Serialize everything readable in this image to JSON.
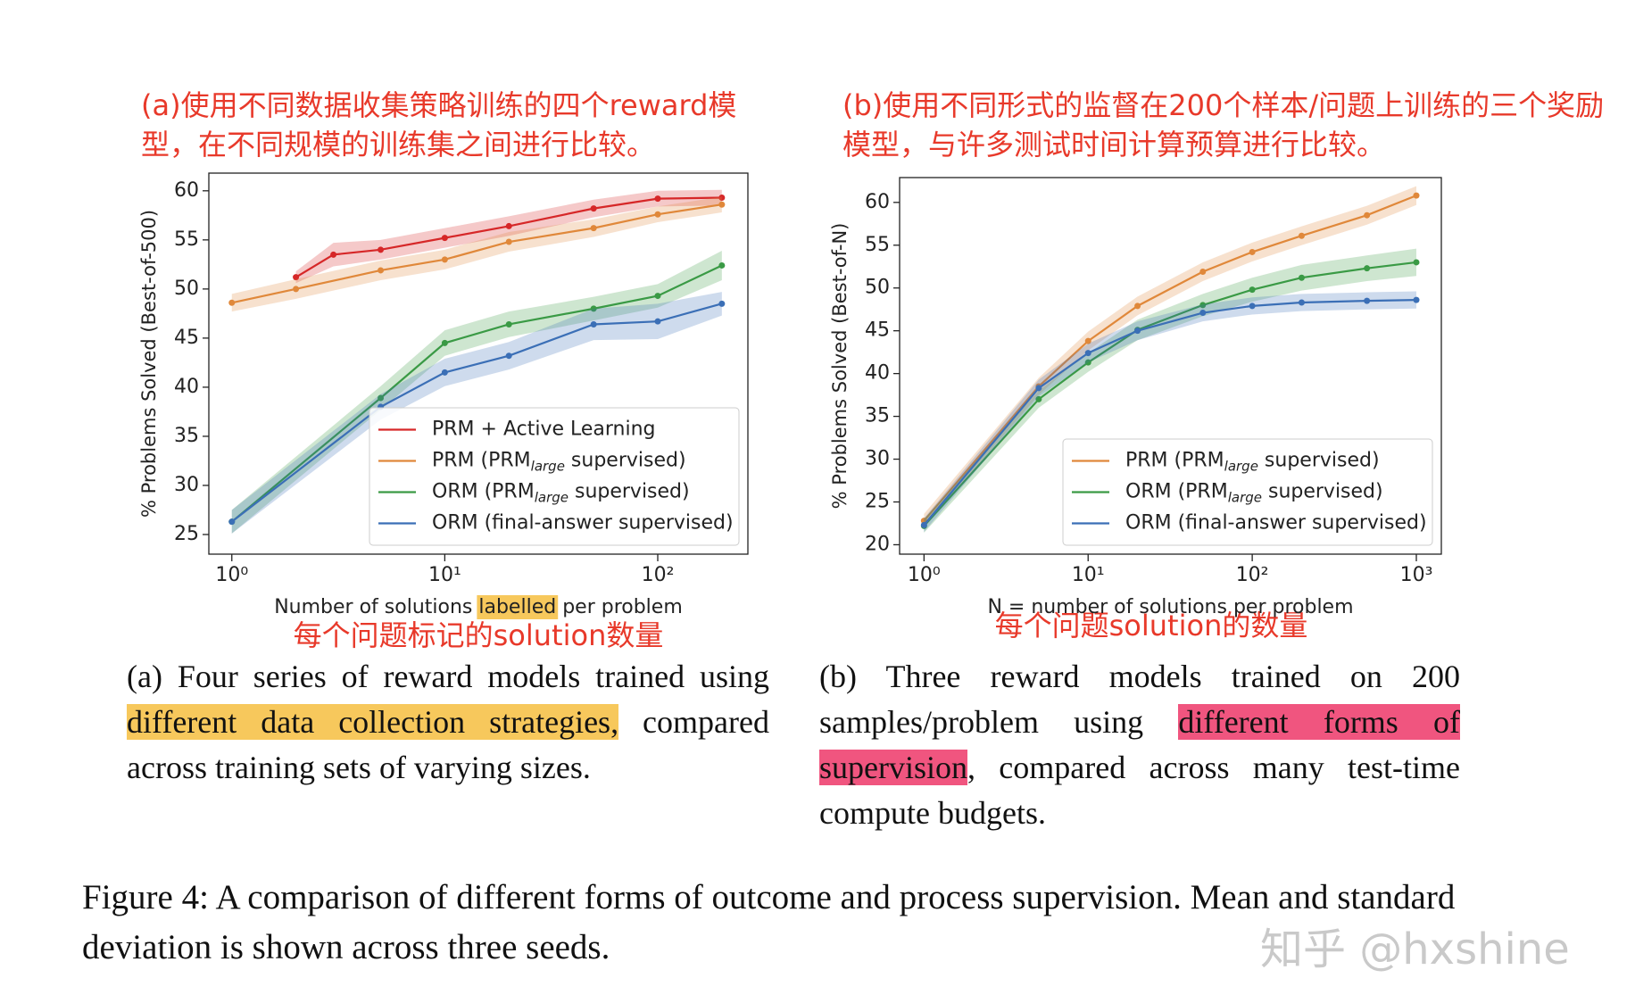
{
  "chart_data": [
    {
      "type": "line",
      "xscale": "log",
      "xlim": [
        0.78,
        265
      ],
      "ylim": [
        23,
        61.8
      ],
      "xticks": [
        {
          "value": 1,
          "label": "10⁰"
        },
        {
          "value": 10,
          "label": "10¹"
        },
        {
          "value": 100,
          "label": "10²"
        }
      ],
      "yticks": [
        25,
        30,
        35,
        40,
        45,
        50,
        55,
        60
      ],
      "xlabel": [
        "Number of solutions ",
        "labelled",
        " per problem"
      ],
      "xlabel_highlight": {
        "index": 1,
        "color": "#f7c85c"
      },
      "ylabel": "% Problems Solved (Best-of-500)",
      "legend": "lower right",
      "series": [
        {
          "name": "PRM + Active Learning",
          "color": "#d62728",
          "x": [
            2,
            3,
            5,
            10,
            20,
            50,
            100,
            200
          ],
          "values": [
            51.2,
            53.5,
            54,
            55.2,
            56.4,
            58.2,
            59.2,
            59.3
          ],
          "errors": [
            0.6,
            1.2,
            1.0,
            1.0,
            1.0,
            0.9,
            0.8,
            0.8
          ]
        },
        {
          "name": [
            "PRM (PRM",
            "large",
            " supervised)"
          ],
          "color": "#e0883a",
          "x": [
            1,
            2,
            5,
            10,
            20,
            50,
            100,
            200
          ],
          "values": [
            48.6,
            50,
            51.9,
            53,
            54.8,
            56.2,
            57.6,
            58.6
          ],
          "errors": [
            0.9,
            1.0,
            1.0,
            1.0,
            1.0,
            0.9,
            0.8,
            0.8
          ]
        },
        {
          "name": [
            "ORM (PRM",
            "large",
            " supervised)"
          ],
          "color": "#3a9a45",
          "x": [
            1,
            5,
            10,
            20,
            50,
            100,
            200
          ],
          "values": [
            26.3,
            38.9,
            44.5,
            46.4,
            48,
            49.3,
            52.4
          ],
          "errors": [
            1.2,
            1.2,
            1.3,
            1.3,
            1.2,
            1.2,
            1.5
          ]
        },
        {
          "name": "ORM (final-answer supervised)",
          "color": "#3b6fb6",
          "x": [
            1,
            5,
            10,
            20,
            50,
            100,
            200
          ],
          "values": [
            26.3,
            38,
            41.5,
            43.2,
            46.4,
            46.7,
            48.5
          ],
          "errors": [
            1.2,
            1.3,
            1.4,
            1.4,
            1.6,
            1.8,
            1.2
          ]
        }
      ]
    },
    {
      "type": "line",
      "xscale": "log",
      "xlim": [
        0.71,
        1420
      ],
      "ylim": [
        18.9,
        62.9
      ],
      "xticks": [
        {
          "value": 1,
          "label": "10⁰"
        },
        {
          "value": 10,
          "label": "10¹"
        },
        {
          "value": 100,
          "label": "10²"
        },
        {
          "value": 1000,
          "label": "10³"
        }
      ],
      "yticks": [
        20,
        25,
        30,
        35,
        40,
        45,
        50,
        55,
        60
      ],
      "xlabel": [
        "N = number of solutions per problem"
      ],
      "ylabel": "% Problems Solved (Best-of-N)",
      "legend": "lower right",
      "series": [
        {
          "name": [
            "PRM (PRM",
            "large",
            " supervised)"
          ],
          "color": "#e0883a",
          "x": [
            1,
            5,
            10,
            20,
            50,
            100,
            200,
            500,
            1000
          ],
          "values": [
            22.8,
            38.5,
            43.8,
            47.9,
            51.9,
            54.2,
            56.1,
            58.5,
            60.8
          ],
          "errors": [
            0.8,
            1.0,
            1.1,
            1.1,
            1.1,
            1.1,
            1.1,
            1.1,
            1.1
          ]
        },
        {
          "name": [
            "ORM (PRM",
            "large",
            " supervised)"
          ],
          "color": "#3a9a45",
          "x": [
            1,
            5,
            10,
            20,
            50,
            100,
            200,
            500,
            1000
          ],
          "values": [
            22.2,
            37,
            41.3,
            45.1,
            48,
            49.8,
            51.2,
            52.3,
            53
          ],
          "errors": [
            0.8,
            1.0,
            1.1,
            1.2,
            1.3,
            1.4,
            1.5,
            1.5,
            1.6
          ]
        },
        {
          "name": "ORM (final-answer supervised)",
          "color": "#3b6fb6",
          "x": [
            1,
            5,
            10,
            20,
            50,
            100,
            200,
            500,
            1000
          ],
          "values": [
            22.3,
            38.3,
            42.4,
            45,
            47.1,
            47.9,
            48.3,
            48.5,
            48.6
          ],
          "errors": [
            0.8,
            1.0,
            1.1,
            1.1,
            1.0,
            1.0,
            1.0,
            1.0,
            1.0
          ]
        }
      ]
    }
  ],
  "annotations": {
    "top_a": "(a)使用不同数据收集策略训练的四个reward模型，在不同规模的训练集之间进行比较。",
    "top_b": "(b)使用不同形式的监督在200个样本/问题上训练的三个奖励模型，与许多测试时间计算预算进行比较。",
    "bottom_a": "每个问题标记的solution数量",
    "bottom_b": "每个问题solution的数量"
  },
  "captions": [
    {
      "parts": [
        "(a) Four series of reward models trained using ",
        "different data collection strategies,",
        " compared across training sets of varying sizes."
      ],
      "highlight": 1,
      "color": "#f7c85c"
    },
    {
      "parts": [
        "(b) Three reward models trained on 200 samples/problem using ",
        "different forms of supervision",
        ", compared across many test-time compute budgets."
      ],
      "highlight": 1,
      "color": "#f0557f"
    }
  ],
  "figure_caption": "Figure 4: A comparison of different forms of outcome and process supervision. Mean and standard deviation is shown across three seeds.",
  "watermark": "知乎 @hxshine"
}
